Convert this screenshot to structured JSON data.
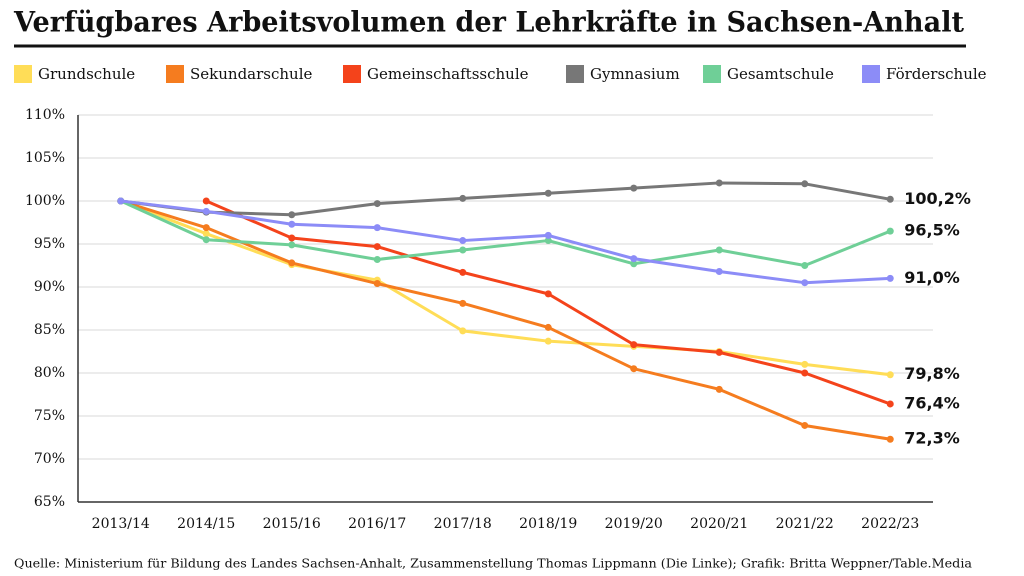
{
  "chart_data": {
    "type": "line",
    "title": "Verfügbares Arbeitsvolumen der Lehrkräfte in Sachsen-Anhalt",
    "source": "Quelle: Ministerium für Bildung des Landes Sachsen-Anhalt, Zusammenstellung Thomas Lippmann (Die Linke); Grafik: Britta Weppner/Table.Media",
    "categories": [
      "2013/14",
      "2014/15",
      "2015/16",
      "2016/17",
      "2017/18",
      "2018/19",
      "2019/20",
      "2020/21",
      "2021/22",
      "2022/23"
    ],
    "ylim": [
      65,
      110
    ],
    "yticks": [
      {
        "value": 65,
        "label": "65%"
      },
      {
        "value": 70,
        "label": "70%"
      },
      {
        "value": 75,
        "label": "75%"
      },
      {
        "value": 80,
        "label": "80%"
      },
      {
        "value": 85,
        "label": "85%"
      },
      {
        "value": 90,
        "label": "90%"
      },
      {
        "value": 95,
        "label": "95%"
      },
      {
        "value": 100,
        "label": "100%"
      },
      {
        "value": 105,
        "label": "105%"
      },
      {
        "value": 110,
        "label": "110%"
      }
    ],
    "grid": true,
    "series": [
      {
        "name": "Grundschule",
        "color": "#ffdd57",
        "values": [
          100,
          96.2,
          92.6,
          90.8,
          84.9,
          83.7,
          83.1,
          82.5,
          81.0,
          79.8
        ],
        "value_labels": [
          null,
          null,
          null,
          null,
          null,
          null,
          null,
          null,
          null,
          "79,8%"
        ]
      },
      {
        "name": "Sekundarschule",
        "color": "#f57c1f",
        "values": [
          100,
          96.9,
          92.8,
          90.4,
          88.1,
          85.3,
          80.5,
          78.1,
          73.9,
          72.3
        ],
        "value_labels": [
          null,
          null,
          null,
          null,
          null,
          null,
          null,
          null,
          null,
          "72,3%"
        ]
      },
      {
        "name": "Gemeinschaftsschule",
        "color": "#f4431b",
        "values": [
          null,
          100,
          95.7,
          94.7,
          91.7,
          89.2,
          83.3,
          82.4,
          80.0,
          76.4
        ],
        "value_labels": [
          null,
          null,
          null,
          null,
          null,
          null,
          null,
          null,
          null,
          "76,4%"
        ]
      },
      {
        "name": "Gymnasium",
        "color": "#777777",
        "values": [
          100,
          98.7,
          98.4,
          99.7,
          100.3,
          100.9,
          101.5,
          102.1,
          102.0,
          100.2
        ],
        "value_labels": [
          null,
          null,
          null,
          null,
          null,
          null,
          null,
          null,
          null,
          "100,2%"
        ]
      },
      {
        "name": "Gesamtschule",
        "color": "#6fcf97",
        "values": [
          100,
          95.5,
          94.9,
          93.2,
          94.3,
          95.4,
          92.7,
          94.3,
          92.5,
          96.5
        ],
        "value_labels": [
          null,
          null,
          null,
          null,
          null,
          null,
          null,
          null,
          null,
          "96,5%"
        ]
      },
      {
        "name": "Förderschule",
        "color": "#8c8cf7",
        "values": [
          100,
          98.8,
          97.3,
          96.9,
          95.4,
          96.0,
          93.3,
          91.8,
          90.5,
          91.0
        ],
        "value_labels": [
          null,
          null,
          null,
          null,
          null,
          null,
          null,
          null,
          null,
          "91,0%"
        ]
      }
    ]
  }
}
